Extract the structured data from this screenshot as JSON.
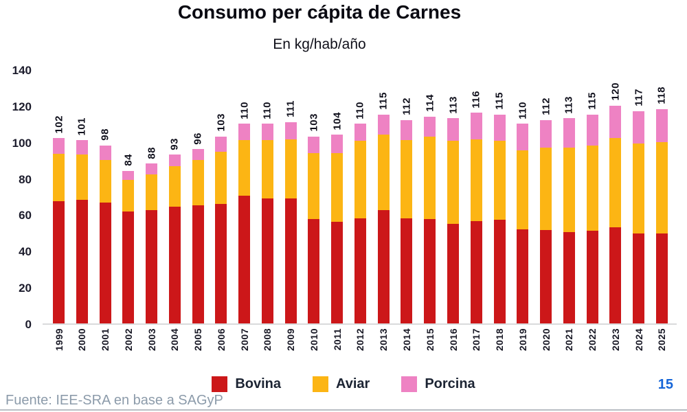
{
  "header": {
    "title": "Consumo per cápita de Carnes",
    "subtitle": "En kg/hab/año"
  },
  "chart_data": {
    "type": "bar",
    "stacked": true,
    "title": "Consumo per cápita de Carnes",
    "subtitle": "En kg/hab/año",
    "ylabel": "kg/hab/año",
    "xlabel": "",
    "ylim": [
      0,
      140
    ],
    "yticks": [
      0,
      20,
      40,
      60,
      80,
      100,
      120,
      140
    ],
    "grid": false,
    "legend_position": "bottom",
    "categories": [
      "1999",
      "2000",
      "2001",
      "2002",
      "2003",
      "2004",
      "2005",
      "2006",
      "2007",
      "2008",
      "2009",
      "2010",
      "2011",
      "2012",
      "2013",
      "2014",
      "2015",
      "2016",
      "2017",
      "2018",
      "2019",
      "2020",
      "2021",
      "2022",
      "2023",
      "2024",
      "2025"
    ],
    "series": [
      {
        "name": "Bovina",
        "color": "#cc1719",
        "values": [
          67.5,
          68,
          66.5,
          61.5,
          62.5,
          64.5,
          65,
          66,
          70.5,
          69,
          69,
          57.5,
          56,
          58,
          62.5,
          58,
          57.5,
          55,
          56.5,
          57,
          52,
          51.5,
          50.5,
          51,
          53,
          49.5,
          49.5
        ]
      },
      {
        "name": "Aviar",
        "color": "#fcb514",
        "values": [
          26,
          25,
          23.5,
          17.5,
          19.5,
          22,
          25,
          28.5,
          30.5,
          32,
          32.5,
          36.5,
          38,
          42.5,
          41.5,
          43,
          45.5,
          45.5,
          45,
          43.5,
          43.5,
          45.5,
          46.5,
          47,
          49,
          49.5,
          50.5
        ]
      },
      {
        "name": "Porcina",
        "color": "#ee82c3",
        "values": [
          8.5,
          8,
          8,
          5,
          6,
          6.5,
          6,
          8.5,
          9,
          9,
          9.5,
          9,
          10,
          9.5,
          11,
          11,
          11,
          12.5,
          14.5,
          14.5,
          14.5,
          15,
          16,
          17,
          18,
          18,
          18
        ]
      }
    ],
    "totals": [
      102,
      101,
      98,
      84,
      88,
      93,
      96,
      103,
      110,
      110,
      111,
      103,
      104,
      110,
      115,
      112,
      114,
      113,
      116,
      115,
      110,
      112,
      113,
      115,
      120,
      117,
      118
    ]
  },
  "legend": {
    "items": [
      {
        "label": "Bovina",
        "color": "#cc1719"
      },
      {
        "label": "Aviar",
        "color": "#fcb514"
      },
      {
        "label": "Porcina",
        "color": "#ee82c3"
      }
    ]
  },
  "footer": {
    "source": "Fuente: IEE-SRA en base a SAGyP",
    "page_number": "15"
  }
}
